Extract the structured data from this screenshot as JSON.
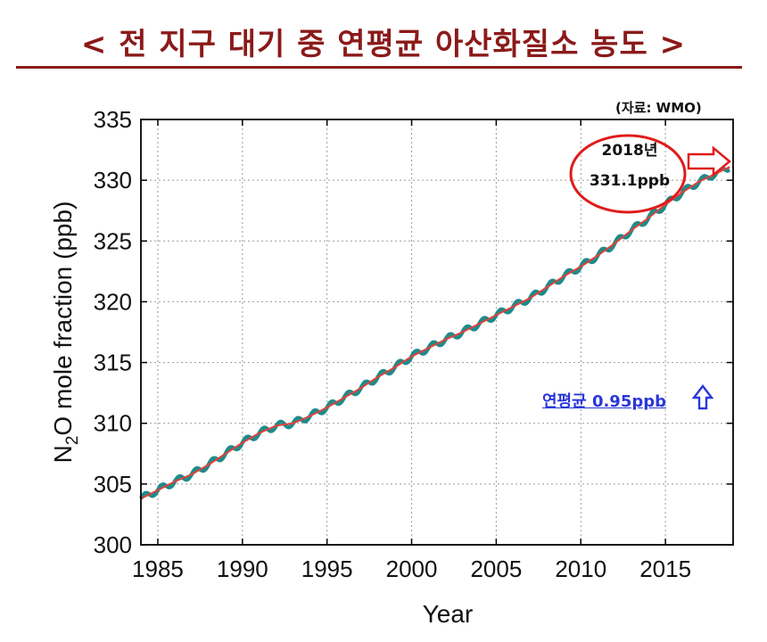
{
  "header": {
    "title": "< 전 지구 대기 중 연평균 아산화질소 농도 >",
    "source": "(자료: WMO)"
  },
  "annotations": {
    "highlight_year": "2018년",
    "highlight_value": "331.1ppb",
    "growth_rate": "연평균 0.95ppb",
    "circle_color": "#e01b1b",
    "arrow_color": "#e01b1b",
    "growth_color": "#2a37d9"
  },
  "colors": {
    "title": "#8b1a1a",
    "monthly_line": "#1f8a8a",
    "trend_line": "#e0413a",
    "grid": "#999999"
  },
  "chart_data": {
    "type": "line",
    "title": "",
    "xlabel": "Year",
    "ylabel": "N2O mole fraction (ppb)",
    "xlim": [
      1984,
      2019
    ],
    "ylim": [
      300,
      335
    ],
    "x_ticks": [
      1985,
      1990,
      1995,
      2000,
      2005,
      2010,
      2015
    ],
    "y_ticks": [
      300,
      305,
      310,
      315,
      320,
      325,
      330,
      335
    ],
    "grid": true,
    "series": [
      {
        "values_kind": "monthly",
        "x": [
          1984,
          1985,
          1986,
          1987,
          1988,
          1989,
          1990,
          1991,
          1992,
          1993,
          1994,
          1995,
          1996,
          1997,
          1998,
          1999,
          2000,
          2001,
          2002,
          2003,
          2004,
          2005,
          2006,
          2007,
          2008,
          2009,
          2010,
          2011,
          2012,
          2013,
          2014,
          2015,
          2016,
          2017,
          2018.8
        ],
        "y": [
          303.8,
          304.5,
          305.2,
          305.8,
          306.6,
          307.5,
          308.4,
          309.2,
          309.8,
          310.0,
          310.6,
          311.3,
          312.1,
          312.9,
          313.8,
          314.6,
          315.5,
          316.2,
          316.9,
          317.5,
          318.2,
          318.9,
          319.6,
          320.3,
          321.2,
          322.1,
          322.9,
          323.8,
          324.8,
          325.9,
          326.9,
          328.0,
          329.0,
          329.9,
          331.1
        ]
      },
      {
        "values_kind": "trend",
        "x": [
          1984,
          1985,
          1986,
          1987,
          1988,
          1989,
          1990,
          1991,
          1992,
          1993,
          1994,
          1995,
          1996,
          1997,
          1998,
          1999,
          2000,
          2001,
          2002,
          2003,
          2004,
          2005,
          2006,
          2007,
          2008,
          2009,
          2010,
          2011,
          2012,
          2013,
          2014,
          2015,
          2016,
          2017,
          2018.8
        ],
        "y": [
          303.8,
          304.5,
          305.2,
          305.8,
          306.6,
          307.5,
          308.4,
          309.2,
          309.8,
          310.0,
          310.6,
          311.3,
          312.1,
          312.9,
          313.8,
          314.6,
          315.5,
          316.2,
          316.9,
          317.5,
          318.2,
          318.9,
          319.6,
          320.3,
          321.2,
          322.1,
          322.9,
          323.8,
          324.8,
          325.9,
          326.9,
          328.0,
          329.0,
          329.9,
          331.1
        ]
      }
    ]
  }
}
